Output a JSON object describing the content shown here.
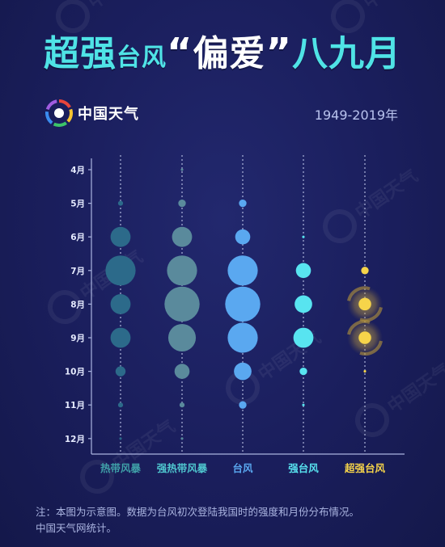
{
  "title": {
    "part1": "超强",
    "part2": "台风",
    "quote_open": "“",
    "part3": "偏爱",
    "quote_close": "”",
    "part4": "八九月"
  },
  "brand": {
    "name": "中国天气",
    "icon": "china-weather-logo-icon",
    "watermark": "中国天气"
  },
  "period": "1949-2019年",
  "colors": {
    "background": "#1a1e5c",
    "title": "#4fe3e6",
    "tropical_storm": "#2c6a8a",
    "severe_tropical_storm": "#5a8a9c",
    "typhoon": "#5aa8f0",
    "strong_typhoon": "#58e4f0",
    "super_typhoon": "#f6d44a"
  },
  "chart_data": {
    "type": "scatter",
    "title": "",
    "categories": [
      "热带风暴",
      "强热带风暴",
      "台风",
      "强台风",
      "超强台风"
    ],
    "months": [
      "4月",
      "5月",
      "6月",
      "7月",
      "8月",
      "9月",
      "10月",
      "11月",
      "12月"
    ],
    "series": [
      {
        "name": "热带风暴",
        "values": [
          0,
          1,
          4,
          6,
          4,
          4,
          2,
          1,
          0.5
        ]
      },
      {
        "name": "强热带风暴",
        "values": [
          0.5,
          1.5,
          4,
          6,
          7,
          5.5,
          3,
          1,
          0.5
        ]
      },
      {
        "name": "台风",
        "values": [
          0,
          1.5,
          3,
          6,
          7,
          6,
          3.5,
          1.5,
          0
        ]
      },
      {
        "name": "强台风",
        "values": [
          0,
          0,
          0.5,
          3,
          3.5,
          4,
          1.5,
          0.5,
          0
        ]
      },
      {
        "name": "超强台风",
        "values": [
          0,
          0,
          0,
          1.5,
          2.5,
          2.5,
          0.5,
          0,
          0
        ]
      }
    ],
    "grid": false,
    "legend": "bottom"
  },
  "note": {
    "line1": "注：本图为示意图。数据为台风初次登陆我国时的强度和月份分布情况。",
    "line2": "中国天气网统计。"
  }
}
